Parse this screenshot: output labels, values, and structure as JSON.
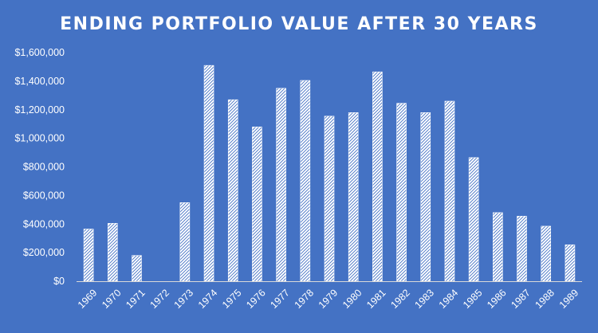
{
  "chart_data": {
    "type": "bar",
    "title": "ENDING PORTFOLIO VALUE AFTER 30 YEARS",
    "xlabel": "",
    "ylabel": "",
    "categories": [
      "1969",
      "1970",
      "1971",
      "1972",
      "1973",
      "1974",
      "1975",
      "1976",
      "1977",
      "1978",
      "1979",
      "1980",
      "1981",
      "1982",
      "1983",
      "1984",
      "1985",
      "1986",
      "1987",
      "1988",
      "1989"
    ],
    "values": [
      365000,
      405000,
      180000,
      0,
      550000,
      1510000,
      1270000,
      1080000,
      1350000,
      1405000,
      1155000,
      1180000,
      1465000,
      1245000,
      1180000,
      1260000,
      865000,
      480000,
      455000,
      385000,
      255000
    ],
    "ylim": [
      0,
      1600000
    ],
    "yticks": [
      0,
      200000,
      400000,
      600000,
      800000,
      1000000,
      1200000,
      1400000,
      1600000
    ],
    "ytick_labels": [
      "$0",
      "$200,000",
      "$400,000",
      "$600,000",
      "$800,000",
      "$1,000,000",
      "$1,200,000",
      "$1,400,000",
      "$1,600,000"
    ],
    "grid": false,
    "legend": "none",
    "colors": {
      "background": "#4472C4",
      "bar_fill": "#ffffff",
      "bar_hatch": "#4472C4",
      "text": "#ffffff",
      "axis": "#d9d9d9"
    }
  }
}
